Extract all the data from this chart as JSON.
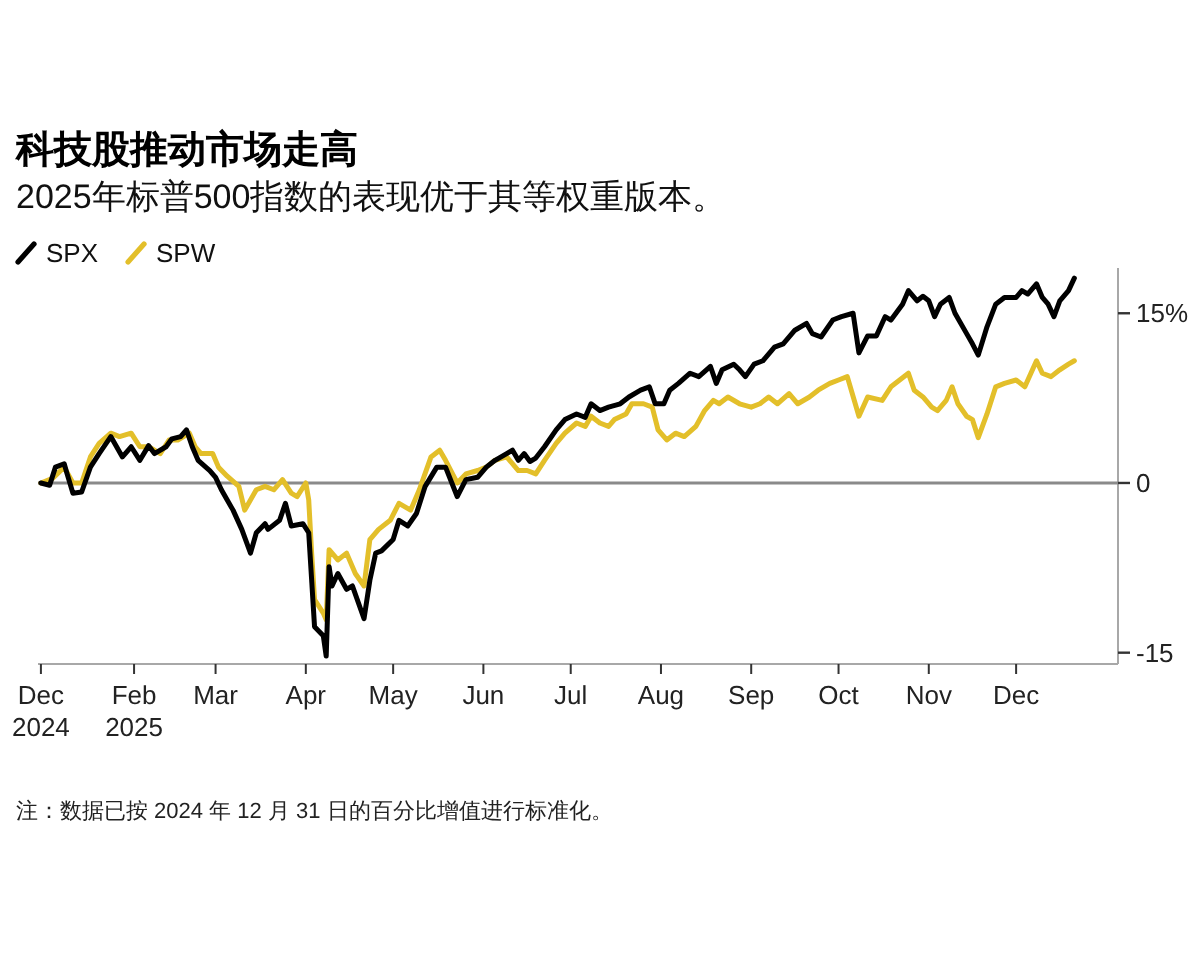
{
  "chart_data": {
    "type": "line",
    "title": "科技股推动市场走高",
    "subtitle": "2025年标普500指数的表现优于其等权重版本。",
    "legend": "top left",
    "series": [
      {
        "name": "SPX",
        "color": "#000000",
        "x": [
          "2024-12-31",
          "2025-01-03",
          "2025-01-05",
          "2025-01-08",
          "2025-01-09",
          "2025-01-11",
          "2025-01-14",
          "2025-01-17",
          "2025-01-20",
          "2025-01-24",
          "2025-01-26",
          "2025-01-28",
          "2025-01-31",
          "2025-02-03",
          "2025-02-06",
          "2025-02-08",
          "2025-02-12",
          "2025-02-14",
          "2025-02-17",
          "2025-02-19",
          "2025-02-21",
          "2025-02-23",
          "2025-02-27",
          "2025-03-01",
          "2025-03-03",
          "2025-03-05",
          "2025-03-07",
          "2025-03-10",
          "2025-03-13",
          "2025-03-15",
          "2025-03-18",
          "2025-03-19",
          "2025-03-23",
          "2025-03-25",
          "2025-03-27",
          "2025-03-31",
          "2025-04-02",
          "2025-04-04",
          "2025-04-07",
          "2025-04-08",
          "2025-04-09",
          "2025-04-10",
          "2025-04-12",
          "2025-04-15",
          "2025-04-17",
          "2025-04-21",
          "2025-04-23",
          "2025-04-25",
          "2025-04-27",
          "2025-05-01",
          "2025-05-03",
          "2025-05-06",
          "2025-05-09",
          "2025-05-12",
          "2025-05-16",
          "2025-05-19",
          "2025-05-23",
          "2025-05-26",
          "2025-05-30",
          "2025-06-02",
          "2025-06-05",
          "2025-06-09",
          "2025-06-11",
          "2025-06-13",
          "2025-06-15",
          "2025-06-17",
          "2025-06-19",
          "2025-06-22",
          "2025-06-26",
          "2025-06-29",
          "2025-07-03",
          "2025-07-06",
          "2025-07-08",
          "2025-07-11",
          "2025-07-14",
          "2025-07-18",
          "2025-07-21",
          "2025-07-25",
          "2025-07-28",
          "2025-07-30",
          "2025-08-02",
          "2025-08-04",
          "2025-08-07",
          "2025-08-11",
          "2025-08-14",
          "2025-08-18",
          "2025-08-20",
          "2025-08-22",
          "2025-08-26",
          "2025-08-28",
          "2025-08-30",
          "2025-09-02",
          "2025-09-05",
          "2025-09-09",
          "2025-09-12",
          "2025-09-16",
          "2025-09-20",
          "2025-09-22",
          "2025-09-25",
          "2025-09-29",
          "2025-10-02",
          "2025-10-06",
          "2025-10-08",
          "2025-10-11",
          "2025-10-14",
          "2025-10-17",
          "2025-10-19",
          "2025-10-23",
          "2025-10-25",
          "2025-10-28",
          "2025-10-30",
          "2025-11-01",
          "2025-11-03",
          "2025-11-05",
          "2025-11-08",
          "2025-11-10",
          "2025-11-14",
          "2025-11-16",
          "2025-11-18",
          "2025-11-21",
          "2025-11-24",
          "2025-11-27",
          "2025-12-01",
          "2025-12-03",
          "2025-12-05",
          "2025-12-08",
          "2025-12-10",
          "2025-12-12",
          "2025-12-14",
          "2025-12-16",
          "2025-12-19",
          "2025-12-21"
        ],
        "values": [
          0,
          -0.2,
          1.4,
          1.7,
          0.8,
          -0.9,
          -0.8,
          1.4,
          2.6,
          4.1,
          3.2,
          2.3,
          3.2,
          2.0,
          3.3,
          2.6,
          3.2,
          3.9,
          4.1,
          4.7,
          3.2,
          2.0,
          1.1,
          0.5,
          -0.6,
          -1.5,
          -2.4,
          -4.1,
          -6.2,
          -4.4,
          -3.6,
          -4.1,
          -3.3,
          -1.8,
          -3.8,
          -3.6,
          -4.4,
          -12.7,
          -13.5,
          -15.3,
          -7.4,
          -9.1,
          -8.0,
          -9.4,
          -9.1,
          -12.0,
          -8.6,
          -6.2,
          -6.0,
          -5.0,
          -3.3,
          -3.8,
          -2.7,
          -0.3,
          1.4,
          1.4,
          -1.2,
          0.3,
          0.5,
          1.4,
          2.0,
          2.6,
          2.9,
          2.0,
          2.6,
          1.9,
          2.2,
          3.2,
          4.7,
          5.6,
          6.1,
          5.8,
          7.0,
          6.4,
          6.7,
          7.0,
          7.6,
          8.2,
          8.5,
          7.0,
          7.0,
          8.2,
          8.8,
          9.7,
          9.4,
          10.3,
          8.8,
          10.0,
          10.5,
          10.0,
          9.4,
          10.5,
          10.8,
          12.0,
          12.3,
          13.5,
          14.1,
          13.2,
          12.9,
          14.4,
          14.7,
          15.0,
          11.5,
          13.0,
          13.0,
          14.7,
          14.4,
          15.8,
          17.0,
          16.1,
          16.5,
          16.1,
          14.7,
          15.8,
          16.4,
          15.0,
          13.2,
          12.3,
          11.3,
          13.8,
          15.8,
          16.4,
          16.4,
          17.0,
          16.7,
          17.6,
          16.4,
          15.8,
          14.7,
          16.1,
          17.0,
          18.1
        ]
      },
      {
        "name": "SPW",
        "color": "#e3bf2a",
        "x": [
          "2024-12-31",
          "2025-01-04",
          "2025-01-08",
          "2025-01-11",
          "2025-01-14",
          "2025-01-17",
          "2025-01-20",
          "2025-01-24",
          "2025-01-27",
          "2025-01-31",
          "2025-02-03",
          "2025-02-06",
          "2025-02-10",
          "2025-02-13",
          "2025-02-16",
          "2025-02-20",
          "2025-02-22",
          "2025-02-24",
          "2025-02-28",
          "2025-03-02",
          "2025-03-05",
          "2025-03-09",
          "2025-03-11",
          "2025-03-15",
          "2025-03-18",
          "2025-03-21",
          "2025-03-24",
          "2025-03-27",
          "2025-03-29",
          "2025-04-01",
          "2025-04-02",
          "2025-04-03",
          "2025-04-04",
          "2025-04-07",
          "2025-04-08",
          "2025-04-09",
          "2025-04-12",
          "2025-04-15",
          "2025-04-18",
          "2025-04-21",
          "2025-04-23",
          "2025-04-26",
          "2025-04-30",
          "2025-05-03",
          "2025-05-07",
          "2025-05-10",
          "2025-05-14",
          "2025-05-17",
          "2025-05-19",
          "2025-05-23",
          "2025-05-26",
          "2025-05-30",
          "2025-06-02",
          "2025-06-05",
          "2025-06-09",
          "2025-06-13",
          "2025-06-16",
          "2025-06-19",
          "2025-06-22",
          "2025-06-26",
          "2025-06-29",
          "2025-07-03",
          "2025-07-06",
          "2025-07-08",
          "2025-07-11",
          "2025-07-14",
          "2025-07-16",
          "2025-07-20",
          "2025-07-22",
          "2025-07-26",
          "2025-07-29",
          "2025-07-31",
          "2025-08-03",
          "2025-08-06",
          "2025-08-09",
          "2025-08-13",
          "2025-08-16",
          "2025-08-19",
          "2025-08-21",
          "2025-08-24",
          "2025-08-28",
          "2025-09-01",
          "2025-09-04",
          "2025-09-07",
          "2025-09-10",
          "2025-09-14",
          "2025-09-17",
          "2025-09-21",
          "2025-09-24",
          "2025-09-28",
          "2025-10-01",
          "2025-10-04",
          "2025-10-08",
          "2025-10-11",
          "2025-10-16",
          "2025-10-19",
          "2025-10-22",
          "2025-10-25",
          "2025-10-27",
          "2025-10-30",
          "2025-11-02",
          "2025-11-04",
          "2025-11-07",
          "2025-11-09",
          "2025-11-11",
          "2025-11-14",
          "2025-11-16",
          "2025-11-18",
          "2025-11-21",
          "2025-11-24",
          "2025-11-27",
          "2025-12-01",
          "2025-12-04",
          "2025-12-08",
          "2025-12-10",
          "2025-12-13",
          "2025-12-16",
          "2025-12-19",
          "2025-12-21"
        ],
        "values": [
          0,
          0.4,
          1.4,
          0,
          0,
          2.3,
          3.5,
          4.4,
          4.1,
          4.4,
          3.2,
          3.2,
          2.6,
          3.8,
          3.8,
          4.4,
          3.2,
          2.6,
          2.6,
          1.4,
          0.6,
          -0.3,
          -2.4,
          -0.6,
          -0.3,
          -0.6,
          0.3,
          -0.9,
          -1.2,
          0,
          -1.5,
          -6.2,
          -10.3,
          -11.5,
          -12.1,
          -5.9,
          -6.8,
          -6.2,
          -8.0,
          -9.1,
          -5.0,
          -4.1,
          -3.3,
          -1.8,
          -2.4,
          -0.6,
          2.3,
          2.9,
          2.0,
          0,
          0.8,
          1.1,
          1.4,
          2.0,
          2.3,
          1.1,
          1.1,
          0.8,
          2.0,
          3.5,
          4.4,
          5.3,
          5.0,
          5.9,
          5.3,
          5.0,
          5.6,
          6.1,
          7.0,
          7.0,
          6.7,
          4.7,
          3.8,
          4.4,
          4.1,
          5.0,
          6.4,
          7.3,
          7.0,
          7.6,
          7.0,
          6.7,
          7.0,
          7.6,
          7.0,
          7.9,
          7.0,
          7.6,
          8.2,
          8.8,
          9.1,
          9.4,
          5.9,
          7.6,
          7.3,
          8.5,
          9.1,
          9.7,
          8.2,
          7.6,
          6.7,
          6.4,
          7.3,
          8.5,
          7.0,
          5.9,
          5.6,
          4.0,
          6.1,
          8.5,
          8.8,
          9.1,
          8.5,
          10.8,
          9.7,
          9.4,
          10.0,
          10.5,
          10.8
        ]
      }
    ],
    "xlim": [
      "2024-12-30",
      "2026-01-05"
    ],
    "xticks": [
      {
        "value": "2024-12-31",
        "label": "Dec 2024"
      },
      {
        "value": "2025-02-01",
        "label": "Feb 2025"
      },
      {
        "value": "2025-03-01",
        "label": "Mar"
      },
      {
        "value": "2025-04-01",
        "label": "Apr"
      },
      {
        "value": "2025-05-01",
        "label": "May"
      },
      {
        "value": "2025-06-01",
        "label": "Jun"
      },
      {
        "value": "2025-07-01",
        "label": "Jul"
      },
      {
        "value": "2025-08-01",
        "label": "Aug"
      },
      {
        "value": "2025-09-01",
        "label": "Sep"
      },
      {
        "value": "2025-10-01",
        "label": "Oct"
      },
      {
        "value": "2025-11-01",
        "label": "Nov"
      },
      {
        "value": "2025-12-01",
        "label": "Dec"
      }
    ],
    "ylim": [
      -16,
      19
    ],
    "yticks": [
      {
        "value": 15,
        "label": "15%"
      },
      0,
      -15
    ],
    "ref_lines": [
      {
        "axis": "y",
        "value": 0,
        "color": "#8a8a8a"
      }
    ],
    "annotations": [
      "注：数据已按 2024 年 12 月 31 日的百分比增值进行标准化。"
    ]
  }
}
